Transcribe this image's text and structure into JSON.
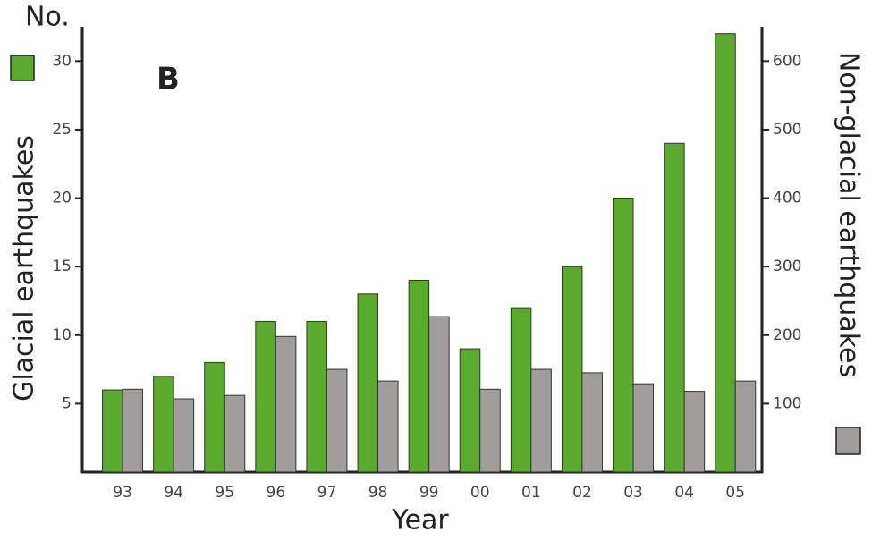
{
  "chart_data": {
    "type": "bar",
    "y_axis_title": "No.",
    "annotations": [
      "B"
    ],
    "x_label": "Year",
    "categories": [
      "93",
      "94",
      "95",
      "96",
      "97",
      "98",
      "99",
      "00",
      "01",
      "02",
      "03",
      "04",
      "05"
    ],
    "series": [
      {
        "name": "Glacial earthquakes",
        "color": "#5aaa2e",
        "values": [
          6,
          7,
          8,
          11,
          11,
          13,
          14,
          9,
          12,
          15,
          20,
          24,
          32
        ]
      },
      {
        "name": "Non-glacial earthquakes",
        "color": "#a19d9d",
        "axis": "y2",
        "values": [
          121,
          107,
          112,
          198,
          150,
          133,
          227,
          121,
          150,
          145,
          129,
          118,
          133
        ]
      }
    ],
    "ylim": [
      0,
      32.5
    ],
    "yticks": [
      5,
      10,
      15,
      20,
      25,
      30
    ],
    "y2lim": [
      0,
      650
    ],
    "y2ticks": [
      100,
      200,
      300,
      400,
      500,
      600
    ]
  }
}
